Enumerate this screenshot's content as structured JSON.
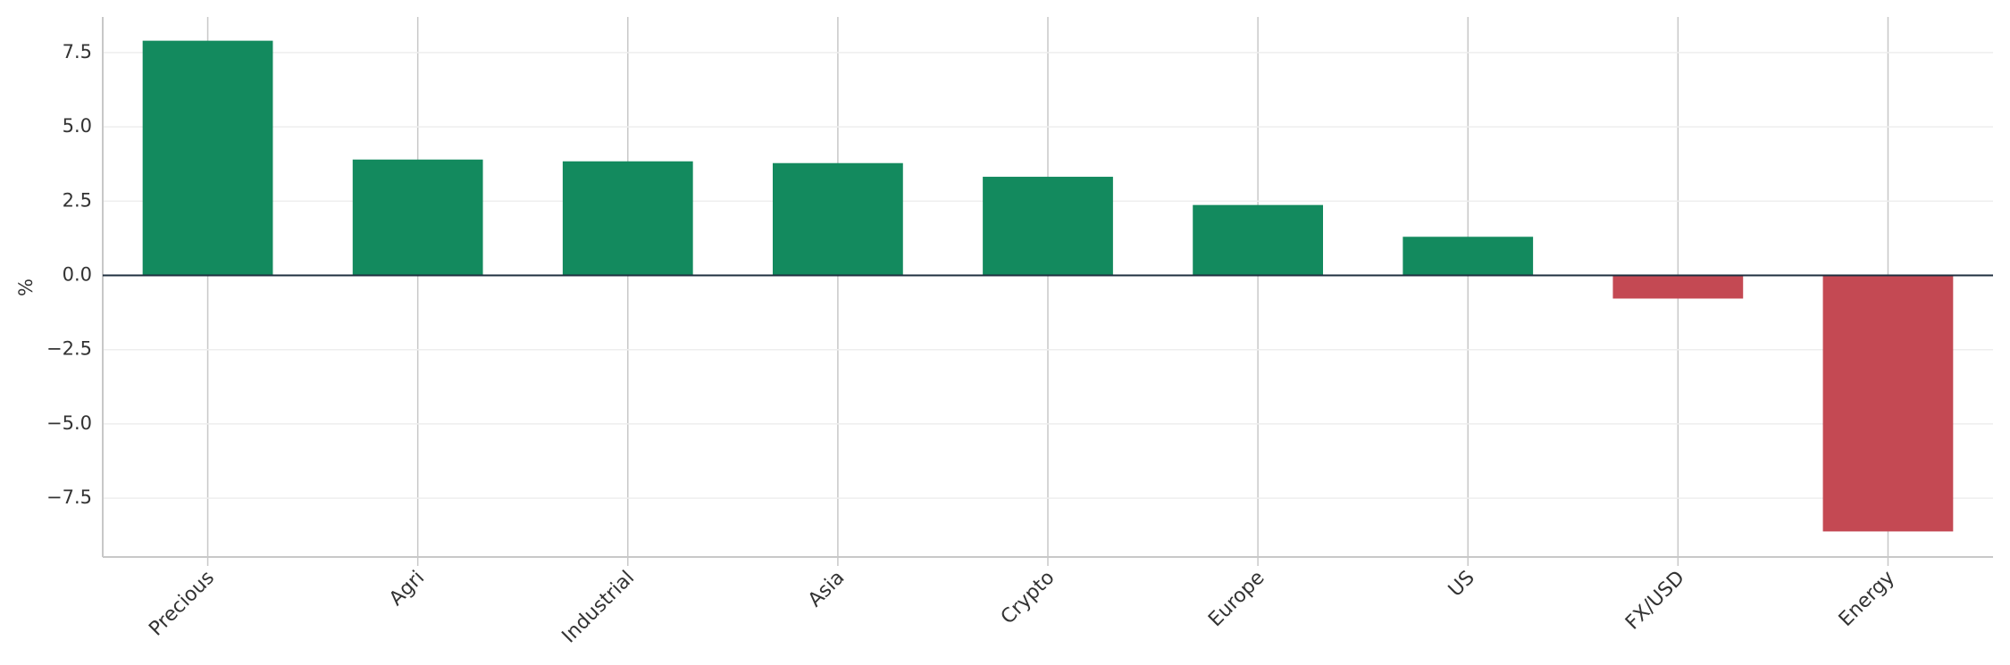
{
  "chart_data": {
    "type": "bar",
    "y_label": "%",
    "categories": [
      "Precious",
      "Agri",
      "Industrial",
      "Asia",
      "Crypto",
      "Europe",
      "US",
      "FX/USD",
      "Energy"
    ],
    "values": [
      7.9,
      3.9,
      3.84,
      3.78,
      3.32,
      2.37,
      1.3,
      -0.78,
      -8.62
    ],
    "color_positive": "#138a5e",
    "color_negative": "#c44953",
    "ylim": [
      -9.48,
      8.7
    ],
    "yticks": [
      {
        "value": -7.5,
        "label": "−7.5"
      },
      {
        "value": -5,
        "label": "−5.0"
      },
      {
        "value": -2.5,
        "label": "−2.5"
      },
      {
        "value": 0,
        "label": "0.0"
      },
      {
        "value": 2.5,
        "label": "2.5"
      },
      {
        "value": 5,
        "label": "5.0"
      },
      7.5
    ],
    "grid": true
  }
}
